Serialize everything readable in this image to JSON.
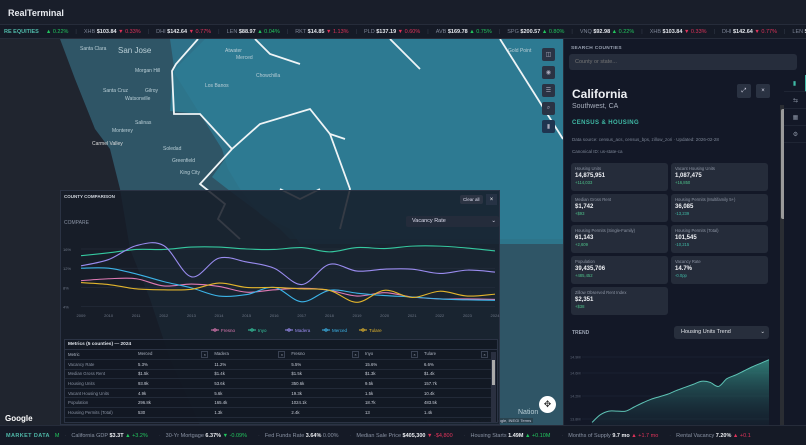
{
  "app": {
    "title": "RealTerminal"
  },
  "ticker": {
    "label": "RE EQUITIES",
    "label_change": "▲ 0.22%",
    "items": [
      {
        "sym": "XHB",
        "price": "$103.84",
        "chg": "▼ 0.33%",
        "dir": "down"
      },
      {
        "sym": "DHI",
        "price": "$142.64",
        "chg": "▼ 0.77%",
        "dir": "down"
      },
      {
        "sym": "LEN",
        "price": "$88.97",
        "chg": "▲ 0.04%",
        "dir": "up"
      },
      {
        "sym": "RKT",
        "price": "$14.85",
        "chg": "▼ 1.13%",
        "dir": "down"
      },
      {
        "sym": "PLD",
        "price": "$137.19",
        "chg": "▼ 0.60%",
        "dir": "down"
      },
      {
        "sym": "AVB",
        "price": "$169.78",
        "chg": "▲ 0.75%",
        "dir": "up"
      },
      {
        "sym": "SPG",
        "price": "$200.57",
        "chg": "▲ 0.80%",
        "dir": "up"
      },
      {
        "sym": "VNQ",
        "price": "$92.98",
        "chg": "▲ 0.22%",
        "dir": "up"
      },
      {
        "sym": "XHB",
        "price": "$103.84",
        "chg": "▼ 0.33%",
        "dir": "down"
      },
      {
        "sym": "DHI",
        "price": "$142.64",
        "chg": "▼ 0.77%",
        "dir": "down"
      },
      {
        "sym": "LEN",
        "price": "$",
        "chg": "",
        "dir": "up"
      }
    ]
  },
  "map": {
    "labels": [
      "Santa Clara",
      "San Jose",
      "Morgan Hill",
      "Gilroy",
      "Santa Cruz",
      "Watsonville",
      "Salinas",
      "Monterey",
      "Carmel Valley",
      "Soledad",
      "Greenfield",
      "King City",
      "Los Banos",
      "Merced",
      "Atwater",
      "Chowchilla",
      "Gold Point",
      "Nation"
    ],
    "tools": [
      "layers-icon",
      "locate-icon",
      "list-icon",
      "search-icon",
      "chart-icon"
    ],
    "brand": "Google",
    "attribution": "Keyboard shortcuts   Map data ©2026 Google, INEGI   Terms"
  },
  "comparison": {
    "title": "COUNTY COMPARISON",
    "clear_label": "Clear all",
    "close": "×",
    "compare_label": "COMPARE",
    "metric": "Vacancy Rate",
    "table_title": "Metrics (5 counties) — 2024",
    "columns": [
      "Metric",
      "Merced",
      "Madera",
      "Fresno",
      "Inyo",
      "Tulare"
    ],
    "rows": [
      [
        "Vacancy Rate",
        "5.3%",
        "11.2%",
        "5.5%",
        "15.6%",
        "6.6%"
      ],
      [
        "Median Gross Rent",
        "$1.5k",
        "$1.4k",
        "$1.5k",
        "$1.3k",
        "$1.4k"
      ],
      [
        "Housing Units",
        "93.9k",
        "53.6k",
        "350.6k",
        "9.5k",
        "157.7k"
      ],
      [
        "Vacant Housing Units",
        "4.9k",
        "5.6k",
        "19.3k",
        "1.5k",
        "10.4k"
      ],
      [
        "Population",
        "296.8k",
        "165.4k",
        "1024.1k",
        "18.7k",
        "483.5k"
      ],
      [
        "Housing Permits (Total)",
        "530",
        "1.3k",
        "2.4k",
        "13",
        "1.4k"
      ]
    ]
  },
  "chart_data": {
    "type": "line",
    "x": [
      2009,
      2010,
      2011,
      2012,
      2013,
      2014,
      2015,
      2016,
      2017,
      2018,
      2019,
      2020,
      2021,
      2022,
      2023,
      2024
    ],
    "ylim": [
      3.5,
      18.5
    ],
    "yticks": [
      "4%",
      "8%",
      "12%",
      "16%"
    ],
    "grid": true,
    "legend": "bottom",
    "series": [
      {
        "name": "Fresno",
        "color": "#e07ab4",
        "values": [
          9.4,
          9.8,
          9.8,
          8.3,
          8.7,
          8.2,
          7.0,
          7.5,
          7.8,
          7.4,
          6.2,
          6.9,
          6.0,
          5.6,
          5.6,
          5.5
        ]
      },
      {
        "name": "Inyo",
        "color": "#35c9a0",
        "values": [
          14.6,
          15.2,
          15.9,
          15.9,
          16.4,
          16.4,
          16.0,
          15.9,
          16.3,
          15.4,
          16.3,
          16.1,
          16.6,
          16.6,
          16.2,
          15.6
        ]
      },
      {
        "name": "Madera",
        "color": "#9a8cf0",
        "values": [
          12.5,
          13.8,
          16.7,
          16.7,
          10.2,
          14.1,
          13.3,
          12.0,
          8.6,
          12.8,
          11.4,
          11.8,
          11.8,
          10.9,
          11.6,
          11.2
        ]
      },
      {
        "name": "Merced",
        "color": "#3cb4e8",
        "values": [
          12.0,
          12.0,
          10.8,
          9.2,
          7.9,
          6.2,
          6.5,
          8.0,
          5.0,
          7.4,
          6.8,
          6.3,
          6.0,
          5.6,
          5.4,
          5.3
        ]
      },
      {
        "name": "Tulare",
        "color": "#e3b52c",
        "values": [
          9.0,
          8.6,
          7.7,
          7.5,
          7.6,
          8.9,
          8.0,
          8.0,
          7.7,
          7.4,
          4.9,
          7.4,
          5.9,
          7.2,
          6.2,
          6.6
        ]
      }
    ]
  },
  "panel": {
    "search_label": "SEARCH COUNTIES",
    "search_placeholder": "County or state...",
    "name": "California",
    "region": "Southwest, CA",
    "section": "CENSUS & HOUSING",
    "source": "Data source: census_acs, census_bps, zillow_zori · Updated: 2026-02-28",
    "canonical": "Canonical ID: us-state-ca",
    "cards": [
      {
        "label": "Housing Units",
        "value": "14,875,951",
        "delta": "+114,033"
      },
      {
        "label": "Vacant Housing Units",
        "value": "1,087,475",
        "delta": "+16,850"
      },
      {
        "label": "Median Gross Rent",
        "value": "$1,742",
        "delta": "+$93"
      },
      {
        "label": "Housing Permits (Multifamily 5+)",
        "value": "36,085",
        "delta": "-13,239"
      },
      {
        "label": "Housing Permits (Single-Family)",
        "value": "61,143",
        "delta": "+2,609"
      },
      {
        "label": "Housing Permits (Total)",
        "value": "101,545",
        "delta": "-10,215"
      },
      {
        "label": "Population",
        "value": "39,435,706",
        "delta": "+485,452"
      },
      {
        "label": "Vacancy Rate",
        "value": "14.7%",
        "delta": "-0.0pp"
      },
      {
        "label": "Zillow Observed Rent Index",
        "value": "$2,351",
        "delta": "+$38"
      }
    ],
    "trend_label": "TREND",
    "trend_select": "Housing Units Trend",
    "trend_ticks": [
      "14.9M",
      "14.6M",
      "14.2M",
      "13.8M"
    ],
    "trend_values": [
      13.6,
      13.75,
      13.82,
      13.82,
      13.82,
      13.9,
      13.98,
      14.05,
      14.1,
      14.15,
      14.22,
      14.28,
      14.34,
      14.4,
      14.38,
      14.3,
      14.45,
      14.52,
      14.6,
      14.68,
      14.75,
      14.82
    ]
  },
  "market": {
    "label": "MARKET DATA",
    "badge": "M",
    "items": [
      {
        "k": "California GDP",
        "v": "$3.3T",
        "c": "▲ +3.2%",
        "dir": "up"
      },
      {
        "k": "30-Yr Mortgage",
        "v": "6.37%",
        "c": "▼ -0.09%",
        "dir": "up"
      },
      {
        "k": "Fed Funds Rate",
        "v": "3.64%",
        "c": "0.00%",
        "dir": "flat"
      },
      {
        "k": "Median Sale Price",
        "v": "$405,300",
        "c": "▼ -$4,800",
        "dir": "down"
      },
      {
        "k": "Housing Starts",
        "v": "1.49M",
        "c": "▲ +0.10M",
        "dir": "up"
      },
      {
        "k": "Months of Supply",
        "v": "9.7 mo",
        "c": "▲ +1.7 mo",
        "dir": "down"
      },
      {
        "k": "Rental Vacancy",
        "v": "7.20%",
        "c": "▲ +0.1",
        "dir": "down"
      }
    ]
  }
}
